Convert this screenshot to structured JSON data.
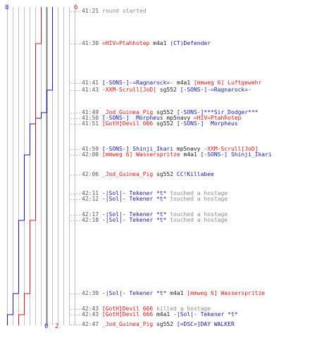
{
  "colors": {
    "red": "#d01818",
    "blue": "#1a1aa0",
    "black": "#222222",
    "gray": "#8a8a8a",
    "timestamp": "#555555",
    "grid": "#c0c0c0",
    "grid_dash": "#bcbcbc",
    "center_line": "#808080"
  },
  "scores": {
    "blue_start": "8",
    "red_start": "6",
    "blue_end": "0",
    "red_end": "2"
  },
  "chart_data": {
    "type": "line",
    "xlabel": "",
    "ylabel": "",
    "x": [
      "41:21",
      "41:30",
      "41:41",
      "41:43",
      "41:49",
      "41:50",
      "41:51",
      "41:59",
      "42:00",
      "42:06",
      "42:11",
      "42:12",
      "42:17",
      "42:18",
      "42:39",
      "42:43",
      "42:43",
      "42:47"
    ],
    "series": [
      {
        "name": "",
        "color": "#1a1aa0",
        "values": [
          8,
          8,
          8,
          8,
          7,
          6,
          5,
          4,
          4,
          3,
          3,
          3,
          3,
          3,
          2,
          1,
          1,
          0
        ]
      },
      {
        "name": "",
        "color": "#d01818",
        "values": [
          6,
          6,
          5,
          5,
          5,
          5,
          5,
          5,
          5,
          5,
          5,
          5,
          5,
          5,
          4,
          3,
          3,
          2
        ]
      }
    ]
  },
  "events": [
    {
      "time": "41:21",
      "parts": [
        {
          "text": "round started",
          "color": "gray"
        }
      ]
    },
    {
      "time": "41:30",
      "parts": [
        {
          "text": "=HIV=Ptahhotep",
          "color": "red"
        },
        {
          "text": " m4a1 ",
          "color": "black"
        },
        {
          "text": "(CT)Defender",
          "color": "blue"
        }
      ]
    },
    {
      "time": "41:41",
      "parts": [
        {
          "text": "[-SONS-]-=Ragnarock=-",
          "color": "blue"
        },
        {
          "text": " m4a1 ",
          "color": "black"
        },
        {
          "text": "[mmweg 6] Luftgewehr",
          "color": "red"
        }
      ]
    },
    {
      "time": "41:43",
      "parts": [
        {
          "text": "-XXM-Scrull[JoD]",
          "color": "red"
        },
        {
          "text": " sg552 ",
          "color": "black"
        },
        {
          "text": "[-SONS-]-=Ragnarock=-",
          "color": "blue"
        }
      ]
    },
    {
      "time": "41:49",
      "parts": [
        {
          "text": "_Jod_Guinea_Pig",
          "color": "red"
        },
        {
          "text": " sg552 ",
          "color": "black"
        },
        {
          "text": "[-SONS-]***Sir_Dodger***",
          "color": "blue"
        }
      ]
    },
    {
      "time": "41:50",
      "parts": [
        {
          "text": "[-SONS-]  Morpheus",
          "color": "blue"
        },
        {
          "text": " mp5navy ",
          "color": "black"
        },
        {
          "text": "=HIV=Ptahhotep",
          "color": "red"
        }
      ]
    },
    {
      "time": "41:51",
      "parts": [
        {
          "text": "[GotH]Devil 666",
          "color": "red"
        },
        {
          "text": " sg552 ",
          "color": "black"
        },
        {
          "text": "[-SONS-]  Morpheus",
          "color": "blue"
        }
      ]
    },
    {
      "time": "41:59",
      "parts": [
        {
          "text": "[-SONS-] Shinji_Ikari",
          "color": "blue"
        },
        {
          "text": " mp5navy ",
          "color": "black"
        },
        {
          "text": "-XXM-Scrull[JoD]",
          "color": "red"
        }
      ]
    },
    {
      "time": "42:00",
      "parts": [
        {
          "text": "[mmweg 6] Wasserspritze",
          "color": "red"
        },
        {
          "text": " m4a1 ",
          "color": "black"
        },
        {
          "text": "[-SONS-] Shinji_Ikari",
          "color": "blue"
        }
      ]
    },
    {
      "time": "42:06",
      "parts": [
        {
          "text": "_Jod_Guinea_Pig",
          "color": "red"
        },
        {
          "text": " sg552 ",
          "color": "black"
        },
        {
          "text": "CC!Killabee",
          "color": "blue"
        }
      ]
    },
    {
      "time": "42:11",
      "parts": [
        {
          "text": "-|Sol|- Tekener *t*",
          "color": "blue"
        },
        {
          "text": " touched a hostage",
          "color": "gray"
        }
      ]
    },
    {
      "time": "42:12",
      "parts": [
        {
          "text": "-|Sol|- Tekener *t*",
          "color": "blue"
        },
        {
          "text": " touched a hostage",
          "color": "gray"
        }
      ]
    },
    {
      "time": "42:17",
      "parts": [
        {
          "text": "-|Sol|- Tekener *t*",
          "color": "blue"
        },
        {
          "text": " touched a hostage",
          "color": "gray"
        }
      ]
    },
    {
      "time": "42:18",
      "parts": [
        {
          "text": "-|Sol|- Tekener *t*",
          "color": "blue"
        },
        {
          "text": " touched a hostage",
          "color": "gray"
        }
      ]
    },
    {
      "time": "42:39",
      "parts": [
        {
          "text": "-|Sol|- Tekener *t*",
          "color": "blue"
        },
        {
          "text": " m4a1 ",
          "color": "black"
        },
        {
          "text": "[mmweg 6] Wasserspritze",
          "color": "red"
        }
      ]
    },
    {
      "time": "42:43",
      "parts": [
        {
          "text": "[GotH]Devil 666",
          "color": "red"
        },
        {
          "text": " killed a hostage",
          "color": "gray"
        }
      ]
    },
    {
      "time": "42:43",
      "parts": [
        {
          "text": "[GotH]Devil 666",
          "color": "red"
        },
        {
          "text": " m4a1 ",
          "color": "black"
        },
        {
          "text": "-|Sol|- Tekener *t*",
          "color": "blue"
        }
      ]
    },
    {
      "time": "42:47",
      "parts": [
        {
          "text": "_Jod_Guinea_Pig",
          "color": "red"
        },
        {
          "text": " sg552 ",
          "color": "black"
        },
        {
          "text": "[=DSC=]DAY WALKER",
          "color": "blue"
        }
      ]
    }
  ]
}
